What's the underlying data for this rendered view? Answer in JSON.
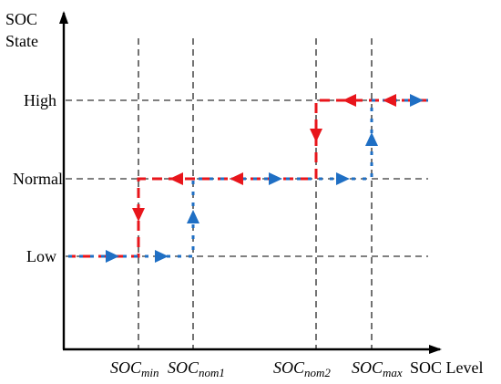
{
  "axes": {
    "y_title_line1": "SOC",
    "y_title_line2": "State",
    "x_title": "SOC Level"
  },
  "states": {
    "high": "High",
    "normal": "Normal",
    "low": "Low"
  },
  "thresholds": {
    "min": {
      "main": "SOC",
      "sub": "min"
    },
    "nom1": {
      "main": "SOC",
      "sub": "nom1"
    },
    "nom2": {
      "main": "SOC",
      "sub": "nom2"
    },
    "max": {
      "main": "SOC",
      "sub": "max"
    }
  },
  "colors": {
    "axis": "#000000",
    "grid": "#000000",
    "charging_path": "#1f6fc4",
    "discharging_path": "#e8151b"
  }
}
